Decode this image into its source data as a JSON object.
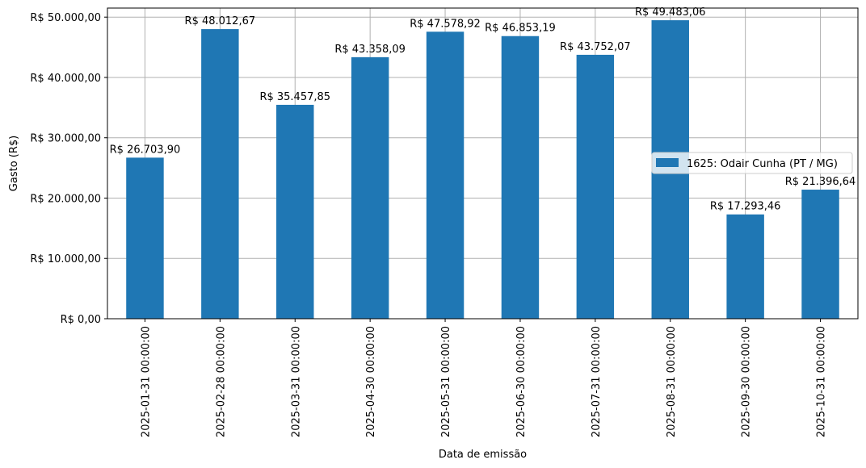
{
  "chart_data": {
    "type": "bar",
    "xlabel": "Data de emissão",
    "ylabel": "Gasto (R$)",
    "ylim": [
      0,
      51500
    ],
    "yticks": [
      0,
      10000,
      20000,
      30000,
      40000,
      50000
    ],
    "ytick_labels": [
      "R$ 0,00",
      "R$ 10.000,00",
      "R$ 20.000,00",
      "R$ 30.000,00",
      "R$ 40.000,00",
      "R$ 50.000,00"
    ],
    "grid": true,
    "legend_position": "center-right",
    "bar_color": "#1f77b4",
    "categories": [
      "2025-01-31 00:00:00",
      "2025-02-28 00:00:00",
      "2025-03-31 00:00:00",
      "2025-04-30 00:00:00",
      "2025-05-31 00:00:00",
      "2025-06-30 00:00:00",
      "2025-07-31 00:00:00",
      "2025-08-31 00:00:00",
      "2025-09-30 00:00:00",
      "2025-10-31 00:00:00"
    ],
    "series": [
      {
        "name": "1625: Odair Cunha (PT / MG)",
        "values": [
          26703.9,
          48012.67,
          35457.85,
          43358.09,
          47578.92,
          46853.19,
          43752.07,
          49483.06,
          17293.46,
          21396.64
        ],
        "data_labels": [
          "R$ 26.703,90",
          "R$ 48.012,67",
          "R$ 35.457,85",
          "R$ 43.358,09",
          "R$ 47.578,92",
          "R$ 46.853,19",
          "R$ 43.752,07",
          "R$ 49.483,06",
          "R$ 17.293,46",
          "R$ 21.396,64"
        ]
      }
    ]
  }
}
